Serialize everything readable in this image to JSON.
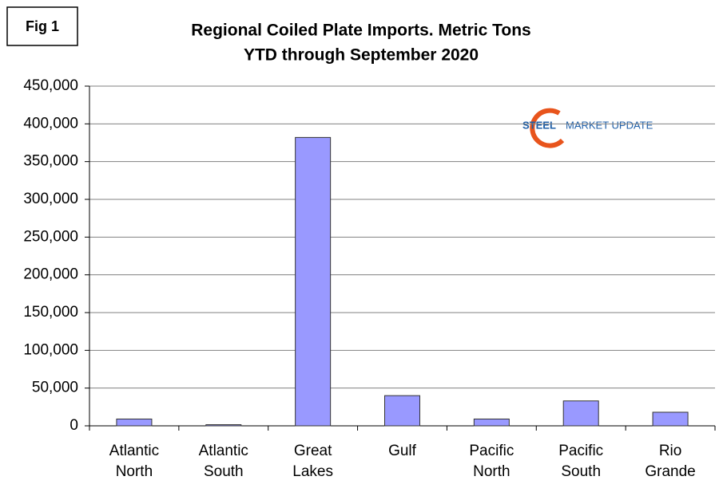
{
  "figure_label": "Fig 1",
  "logo": {
    "first": "STEEL",
    "rest": "MARKET UPDATE"
  },
  "chart_data": {
    "type": "bar",
    "title": "Regional Coiled Plate Imports. Metric Tons",
    "subtitle": "YTD through September 2020",
    "categories": [
      "Atlantic North",
      "Atlantic South",
      "Great Lakes",
      "Gulf",
      "Pacific North",
      "Pacific South",
      "Rio Grande"
    ],
    "values": [
      9000,
      1500,
      382000,
      40000,
      9000,
      33000,
      18000
    ],
    "color": "#9999ff",
    "ylim": [
      0,
      450000
    ],
    "yticks": [
      0,
      {
        "value": 50000,
        "label": "50,000"
      },
      {
        "value": 100000,
        "label": "100,000"
      },
      {
        "value": 150000,
        "label": "150,000"
      },
      {
        "value": 200000,
        "label": "200,000"
      },
      {
        "value": 250000,
        "label": "250,000"
      },
      {
        "value": 300000,
        "label": "300,000"
      },
      {
        "value": 350000,
        "label": "350,000"
      },
      {
        "value": 400000,
        "label": "400,000"
      },
      {
        "value": 450000,
        "label": "450,000"
      }
    ],
    "grid": true
  }
}
